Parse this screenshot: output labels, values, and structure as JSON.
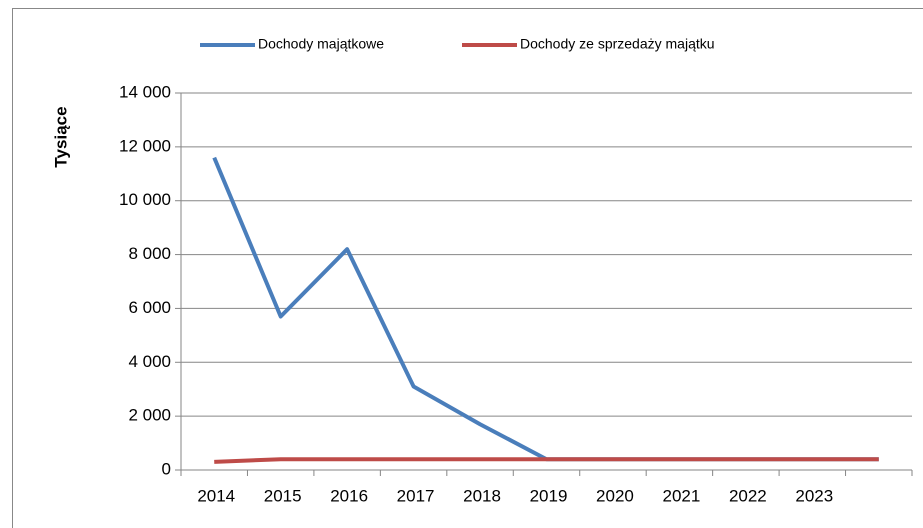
{
  "chart_data": {
    "type": "line",
    "y_label": "Tysiące",
    "categories": [
      "2014",
      "2015",
      "2016",
      "2017",
      "2018",
      "2019",
      "2020",
      "2021",
      "2022",
      "2023",
      null
    ],
    "series": [
      {
        "name": "Dochody majątkowe",
        "color": "#4a7ebb",
        "values": [
          11600,
          5700,
          8200,
          3100,
          1700,
          400,
          400,
          400,
          400,
          400,
          400
        ]
      },
      {
        "name": "Dochody ze sprzedaży majątku",
        "color": "#be4b48",
        "values": [
          300,
          400,
          400,
          400,
          400,
          400,
          400,
          400,
          400,
          400,
          400
        ]
      }
    ],
    "ylim": [
      0,
      14000
    ],
    "yticks": [
      0,
      {
        "value": 2000,
        "label": "2 000"
      },
      {
        "value": 4000,
        "label": "4 000"
      },
      {
        "value": 6000,
        "label": "6 000"
      },
      {
        "value": 8000,
        "label": "8 000"
      },
      {
        "value": 10000,
        "label": "10 000"
      },
      {
        "value": 12000,
        "label": "12 000"
      },
      {
        "value": 14000,
        "label": "14 000"
      }
    ],
    "grid": true,
    "legend": "top"
  }
}
